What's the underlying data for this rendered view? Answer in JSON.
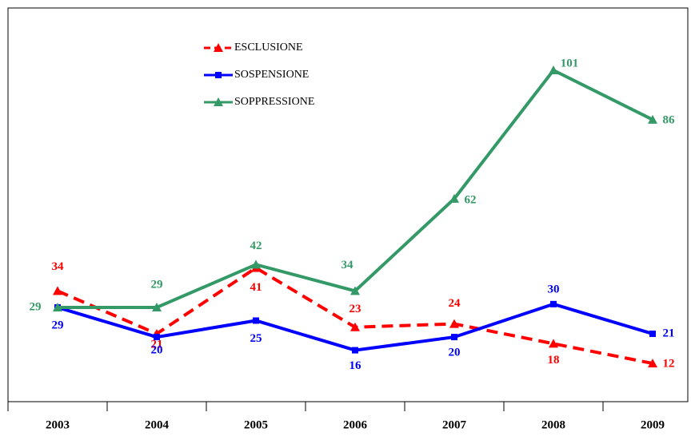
{
  "chart_data": {
    "type": "line",
    "categories": [
      "2003",
      "2004",
      "2005",
      "2006",
      "2007",
      "2008",
      "2009"
    ],
    "series": [
      {
        "name": "ESCLUSIONE",
        "color": "#ff0000",
        "values": [
          34,
          21,
          41,
          23,
          24,
          18,
          12
        ]
      },
      {
        "name": "SOSPENSIONE",
        "color": "#0000ff",
        "values": [
          29,
          20,
          25,
          16,
          20,
          30,
          21
        ]
      },
      {
        "name": "SOPPRESSIONE",
        "color": "#339966",
        "values": [
          29,
          29,
          42,
          34,
          62,
          101,
          86
        ]
      }
    ],
    "ylim": [
      0,
      120
    ],
    "legend": "top"
  }
}
